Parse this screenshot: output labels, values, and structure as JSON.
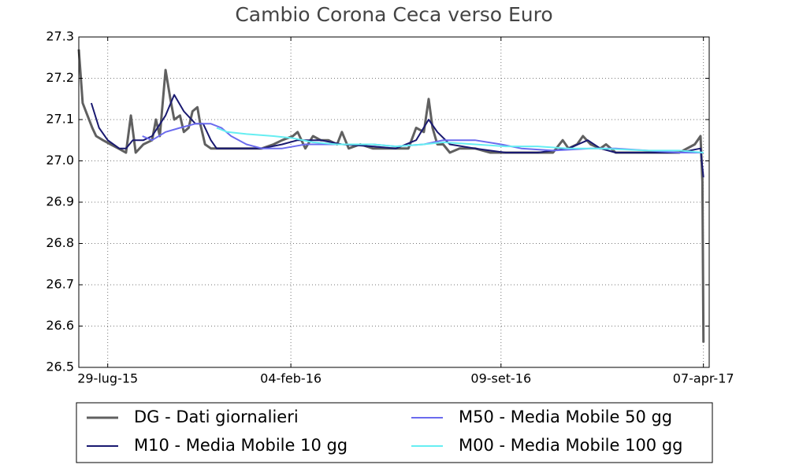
{
  "chart_data": {
    "type": "line",
    "title": "Cambio Corona  Ceca verso Euro",
    "xlim": [
      "2015-06-29",
      "2017-04-13"
    ],
    "xticks": [
      {
        "value": "2015-07-29",
        "label": "29-lug-15"
      },
      {
        "value": "2016-02-04",
        "label": "04-feb-16"
      },
      {
        "value": "2016-09-09",
        "label": "09-set-16"
      },
      {
        "value": "2017-04-07",
        "label": "07-apr-17"
      }
    ],
    "ylim": [
      26.5,
      27.3
    ],
    "yticks": [
      26.5,
      26.6,
      26.7,
      26.8,
      26.9,
      {
        "value": 27,
        "label": "27.0"
      },
      27.1,
      27.2,
      27.3
    ],
    "grid": true,
    "legend": "bottom",
    "series": [
      {
        "name": "DG - Dati giornalieri",
        "color": "#606060",
        "width": 3,
        "x": [
          "2015-06-29",
          "2015-07-03",
          "2015-07-08",
          "2015-07-13",
          "2015-07-17",
          "2015-07-24",
          "2015-08-01",
          "2015-08-09",
          "2015-08-17",
          "2015-08-22",
          "2015-08-27",
          "2015-09-04",
          "2015-09-13",
          "2015-09-17",
          "2015-09-21",
          "2015-09-27",
          "2015-10-02",
          "2015-10-06",
          "2015-10-12",
          "2015-10-16",
          "2015-10-21",
          "2015-10-25",
          "2015-10-30",
          "2015-11-02",
          "2015-11-07",
          "2015-11-13",
          "2015-11-19",
          "2015-11-30",
          "2015-12-12",
          "2015-12-24",
          "2016-01-05",
          "2016-01-17",
          "2016-01-26",
          "2016-02-06",
          "2016-02-11",
          "2016-02-19",
          "2016-02-27",
          "2016-03-06",
          "2016-03-14",
          "2016-03-23",
          "2016-03-28",
          "2016-04-04",
          "2016-04-16",
          "2016-04-29",
          "2016-05-11",
          "2016-05-23",
          "2016-06-05",
          "2016-06-13",
          "2016-06-21",
          "2016-06-26",
          "2016-06-30",
          "2016-07-05",
          "2016-07-11",
          "2016-07-18",
          "2016-07-28",
          "2016-08-13",
          "2016-08-29",
          "2016-09-14",
          "2016-09-30",
          "2016-10-17",
          "2016-11-02",
          "2016-11-12",
          "2016-11-18",
          "2016-11-27",
          "2016-12-03",
          "2016-12-11",
          "2016-12-21",
          "2016-12-27",
          "2017-01-06",
          "2017-01-23",
          "2017-02-08",
          "2017-02-24",
          "2017-03-13",
          "2017-03-29",
          "2017-04-04",
          "2017-04-06",
          "2017-04-07"
        ],
        "values": [
          27.27,
          27.14,
          27.11,
          27.08,
          27.06,
          27.05,
          27.04,
          27.03,
          27.02,
          27.11,
          27.02,
          27.04,
          27.05,
          27.1,
          27.06,
          27.22,
          27.15,
          27.1,
          27.11,
          27.07,
          27.08,
          27.12,
          27.13,
          27.09,
          27.04,
          27.03,
          27.03,
          27.03,
          27.03,
          27.03,
          27.03,
          27.04,
          27.05,
          27.06,
          27.07,
          27.03,
          27.06,
          27.05,
          27.05,
          27.04,
          27.07,
          27.03,
          27.04,
          27.03,
          27.03,
          27.03,
          27.03,
          27.08,
          27.07,
          27.15,
          27.08,
          27.04,
          27.04,
          27.02,
          27.03,
          27.03,
          27.02,
          27.02,
          27.02,
          27.02,
          27.02,
          27.05,
          27.03,
          27.04,
          27.06,
          27.04,
          27.03,
          27.04,
          27.02,
          27.02,
          27.02,
          27.02,
          27.02,
          27.04,
          27.06,
          26.95,
          26.56
        ]
      },
      {
        "name": "M10 - Media Mobile 10 gg",
        "color": "#191970",
        "width": 2,
        "x": [
          "2015-07-12",
          "2015-07-20",
          "2015-07-29",
          "2015-08-10",
          "2015-08-17",
          "2015-08-24",
          "2015-09-04",
          "2015-09-13",
          "2015-09-27",
          "2015-10-06",
          "2015-10-16",
          "2015-10-28",
          "2015-11-05",
          "2015-11-13",
          "2015-11-19",
          "2015-12-12",
          "2016-01-05",
          "2016-01-26",
          "2016-02-11",
          "2016-03-06",
          "2016-03-28",
          "2016-04-29",
          "2016-05-23",
          "2016-06-13",
          "2016-06-26",
          "2016-07-05",
          "2016-07-18",
          "2016-08-13",
          "2016-09-14",
          "2016-10-17",
          "2016-11-18",
          "2016-12-08",
          "2016-12-21",
          "2017-01-06",
          "2017-02-08",
          "2017-03-13",
          "2017-04-04",
          "2017-04-07"
        ],
        "values": [
          27.14,
          27.08,
          27.05,
          27.03,
          27.03,
          27.05,
          27.05,
          27.06,
          27.11,
          27.16,
          27.12,
          27.09,
          27.09,
          27.05,
          27.03,
          27.03,
          27.03,
          27.04,
          27.05,
          27.05,
          27.04,
          27.035,
          27.03,
          27.05,
          27.1,
          27.07,
          27.04,
          27.03,
          27.02,
          27.02,
          27.03,
          27.05,
          27.03,
          27.02,
          27.02,
          27.02,
          27.03,
          26.96
        ]
      },
      {
        "name": "M50 - Media Mobile 50 gg",
        "color": "#6b6bee",
        "width": 2,
        "x": [
          "2015-09-03",
          "2015-09-13",
          "2015-09-27",
          "2015-10-12",
          "2015-10-28",
          "2015-11-13",
          "2015-11-24",
          "2015-12-04",
          "2015-12-20",
          "2016-01-05",
          "2016-01-26",
          "2016-02-19",
          "2016-03-23",
          "2016-04-29",
          "2016-05-23",
          "2016-06-21",
          "2016-07-11",
          "2016-08-13",
          "2016-09-09",
          "2016-09-30",
          "2016-11-02",
          "2016-12-11",
          "2017-01-06",
          "2017-02-08",
          "2017-03-13",
          "2017-04-07"
        ],
        "values": [
          27.06,
          27.05,
          27.07,
          27.08,
          27.09,
          27.09,
          27.08,
          27.06,
          27.04,
          27.03,
          27.03,
          27.04,
          27.04,
          27.04,
          27.035,
          27.04,
          27.05,
          27.05,
          27.04,
          27.03,
          27.025,
          27.03,
          27.03,
          27.025,
          27.02,
          27.02
        ]
      },
      {
        "name": "M00 - Media Mobile 100 gg",
        "color": "#66eef2",
        "width": 2,
        "x": [
          "2015-11-19",
          "2015-11-30",
          "2015-12-20",
          "2016-01-17",
          "2016-02-06",
          "2016-02-27",
          "2016-03-23",
          "2016-04-29",
          "2016-05-23",
          "2016-06-21",
          "2016-07-11",
          "2016-08-13",
          "2016-09-14",
          "2016-10-17",
          "2016-11-18",
          "2016-12-21",
          "2017-02-08",
          "2017-03-13",
          "2017-04-07"
        ],
        "values": [
          27.08,
          27.07,
          27.065,
          27.06,
          27.055,
          27.045,
          27.04,
          27.04,
          27.035,
          27.04,
          27.045,
          27.04,
          27.035,
          27.035,
          27.03,
          27.03,
          27.025,
          27.025,
          27.02
        ]
      }
    ]
  }
}
